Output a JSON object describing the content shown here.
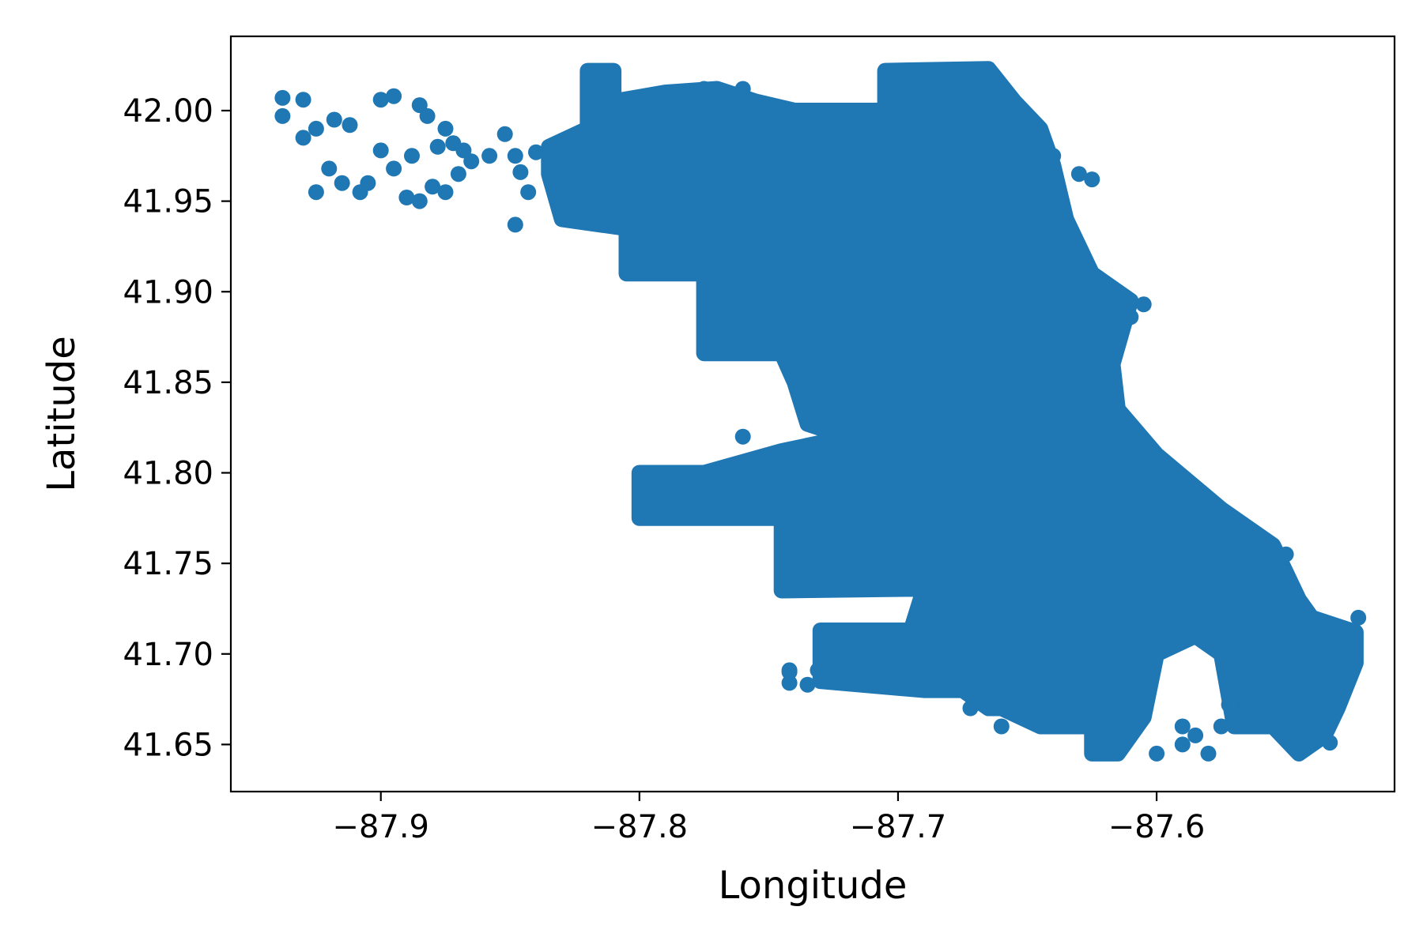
{
  "chart_data": {
    "type": "scatter",
    "title": "",
    "xlabel": "Longitude",
    "ylabel": "Latitude",
    "xlim": [
      -87.958,
      -87.508
    ],
    "ylim": [
      41.624,
      42.041
    ],
    "xticks": [
      -87.9,
      -87.8,
      -87.7,
      -87.6
    ],
    "xtick_labels": [
      "−87.9",
      "−87.8",
      "−87.7",
      "−87.6"
    ],
    "yticks": [
      41.65,
      41.7,
      41.75,
      41.8,
      41.85,
      41.9,
      41.95,
      42.0
    ],
    "ytick_labels": [
      "41.65",
      "41.70",
      "41.75",
      "41.80",
      "41.85",
      "41.90",
      "41.95",
      "42.00"
    ],
    "grid": false,
    "legend": "none",
    "series": [
      {
        "color": "#1f77b4",
        "outline": [
          [
            -87.82,
            42.022
          ],
          [
            -87.81,
            42.022
          ],
          [
            -87.81,
            42.005
          ],
          [
            -87.79,
            42.01
          ],
          [
            -87.77,
            42.012
          ],
          [
            -87.755,
            42.005
          ],
          [
            -87.74,
            42.0
          ],
          [
            -87.705,
            42.0
          ],
          [
            -87.705,
            42.022
          ],
          [
            -87.665,
            42.023
          ],
          [
            -87.655,
            42.005
          ],
          [
            -87.645,
            41.99
          ],
          [
            -87.64,
            41.97
          ],
          [
            -87.635,
            41.94
          ],
          [
            -87.625,
            41.91
          ],
          [
            -87.61,
            41.895
          ],
          [
            -87.617,
            41.86
          ],
          [
            -87.615,
            41.835
          ],
          [
            -87.6,
            41.81
          ],
          [
            -87.575,
            41.78
          ],
          [
            -87.555,
            41.76
          ],
          [
            -87.545,
            41.73
          ],
          [
            -87.54,
            41.72
          ],
          [
            -87.523,
            41.712
          ],
          [
            -87.523,
            41.695
          ],
          [
            -87.53,
            41.67
          ],
          [
            -87.535,
            41.655
          ],
          [
            -87.545,
            41.645
          ],
          [
            -87.555,
            41.66
          ],
          [
            -87.57,
            41.66
          ],
          [
            -87.575,
            41.7
          ],
          [
            -87.585,
            41.71
          ],
          [
            -87.6,
            41.7
          ],
          [
            -87.605,
            41.665
          ],
          [
            -87.615,
            41.645
          ],
          [
            -87.625,
            41.645
          ],
          [
            -87.625,
            41.66
          ],
          [
            -87.645,
            41.66
          ],
          [
            -87.66,
            41.67
          ],
          [
            -87.665,
            41.67
          ],
          [
            -87.675,
            41.68
          ],
          [
            -87.69,
            41.68
          ],
          [
            -87.73,
            41.685
          ],
          [
            -87.73,
            41.713
          ],
          [
            -87.695,
            41.713
          ],
          [
            -87.69,
            41.736
          ],
          [
            -87.745,
            41.735
          ],
          [
            -87.745,
            41.775
          ],
          [
            -87.8,
            41.775
          ],
          [
            -87.8,
            41.8
          ],
          [
            -87.775,
            41.8
          ],
          [
            -87.745,
            41.812
          ],
          [
            -87.725,
            41.818
          ],
          [
            -87.72,
            41.82
          ],
          [
            -87.735,
            41.827
          ],
          [
            -87.74,
            41.85
          ],
          [
            -87.745,
            41.866
          ],
          [
            -87.775,
            41.866
          ],
          [
            -87.775,
            41.91
          ],
          [
            -87.805,
            41.91
          ],
          [
            -87.805,
            41.935
          ],
          [
            -87.83,
            41.94
          ],
          [
            -87.835,
            41.965
          ],
          [
            -87.835,
            41.98
          ],
          [
            -87.82,
            41.99
          ],
          [
            -87.82,
            42.022
          ]
        ],
        "points": [
          [
            -87.938,
            42.007
          ],
          [
            -87.93,
            42.006
          ],
          [
            -87.938,
            41.997
          ],
          [
            -87.925,
            41.99
          ],
          [
            -87.93,
            41.985
          ],
          [
            -87.918,
            41.995
          ],
          [
            -87.912,
            41.992
          ],
          [
            -87.92,
            41.968
          ],
          [
            -87.915,
            41.96
          ],
          [
            -87.905,
            41.96
          ],
          [
            -87.925,
            41.955
          ],
          [
            -87.908,
            41.955
          ],
          [
            -87.9,
            41.978
          ],
          [
            -87.895,
            41.968
          ],
          [
            -87.888,
            41.975
          ],
          [
            -87.878,
            41.98
          ],
          [
            -87.9,
            42.006
          ],
          [
            -87.895,
            42.008
          ],
          [
            -87.885,
            42.003
          ],
          [
            -87.882,
            41.997
          ],
          [
            -87.875,
            41.99
          ],
          [
            -87.872,
            41.982
          ],
          [
            -87.868,
            41.978
          ],
          [
            -87.865,
            41.972
          ],
          [
            -87.87,
            41.965
          ],
          [
            -87.88,
            41.958
          ],
          [
            -87.89,
            41.952
          ],
          [
            -87.885,
            41.95
          ],
          [
            -87.875,
            41.955
          ],
          [
            -87.858,
            41.975
          ],
          [
            -87.848,
            41.975
          ],
          [
            -87.84,
            41.977
          ],
          [
            -87.852,
            41.987
          ],
          [
            -87.846,
            41.966
          ],
          [
            -87.848,
            41.937
          ],
          [
            -87.843,
            41.955
          ],
          [
            -87.76,
            41.82
          ],
          [
            -87.725,
            41.685
          ],
          [
            -87.742,
            41.684
          ],
          [
            -87.742,
            41.691
          ],
          [
            -87.735,
            41.683
          ],
          [
            -87.731,
            41.691
          ],
          [
            -87.742,
            41.69
          ],
          [
            -87.54,
            41.652
          ],
          [
            -87.533,
            41.651
          ],
          [
            -87.545,
            41.648
          ],
          [
            -87.58,
            41.645
          ],
          [
            -87.585,
            41.655
          ],
          [
            -87.59,
            41.65
          ],
          [
            -87.6,
            41.645
          ],
          [
            -87.522,
            41.72
          ],
          [
            -87.605,
            41.893
          ],
          [
            -87.61,
            41.886
          ],
          [
            -87.62,
            41.866
          ],
          [
            -87.625,
            41.87
          ],
          [
            -87.625,
            41.962
          ],
          [
            -87.63,
            41.965
          ],
          [
            -87.64,
            41.975
          ],
          [
            -87.76,
            42.012
          ],
          [
            -87.775,
            42.012
          ],
          [
            -87.55,
            41.755
          ],
          [
            -87.555,
            41.73
          ],
          [
            -87.55,
            41.745
          ],
          [
            -87.56,
            41.685
          ],
          [
            -87.548,
            41.684
          ],
          [
            -87.565,
            41.672
          ],
          [
            -87.572,
            41.672
          ],
          [
            -87.575,
            41.66
          ],
          [
            -87.59,
            41.66
          ],
          [
            -87.61,
            41.672
          ],
          [
            -87.64,
            41.665
          ],
          [
            -87.66,
            41.66
          ],
          [
            -87.672,
            41.67
          ],
          [
            -87.69,
            41.685
          ],
          [
            -87.715,
            41.69
          ],
          [
            -87.72,
            41.687
          ]
        ]
      }
    ]
  }
}
